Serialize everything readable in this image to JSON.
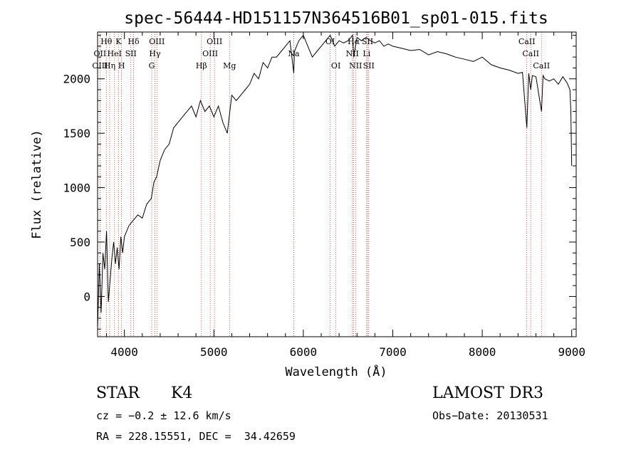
{
  "chart_data": {
    "type": "line",
    "title": "spec-56444-HD151157N364516B01_sp01-015.fits",
    "xlabel": "Wavelength (Å)",
    "ylabel": "Flux (relative)",
    "xlim": [
      3700,
      9050
    ],
    "ylim": [
      -370,
      2430
    ],
    "x_ticks": [
      4000,
      5000,
      6000,
      7000,
      8000,
      9000
    ],
    "y_ticks": [
      0,
      500,
      1000,
      1500,
      2000
    ],
    "grid": false,
    "series": [
      {
        "name": "flux",
        "x": [
          3700,
          3720,
          3740,
          3760,
          3780,
          3800,
          3820,
          3840,
          3860,
          3880,
          3900,
          3920,
          3940,
          3960,
          3980,
          4000,
          4050,
          4100,
          4150,
          4200,
          4250,
          4300,
          4330,
          4360,
          4400,
          4450,
          4500,
          4550,
          4600,
          4650,
          4700,
          4750,
          4800,
          4850,
          4900,
          4950,
          5000,
          5050,
          5100,
          5150,
          5200,
          5250,
          5300,
          5350,
          5400,
          5450,
          5500,
          5550,
          5600,
          5650,
          5700,
          5750,
          5800,
          5850,
          5893,
          5900,
          5950,
          6000,
          6050,
          6100,
          6150,
          6200,
          6250,
          6300,
          6350,
          6400,
          6450,
          6500,
          6550,
          6563,
          6600,
          6650,
          6700,
          6750,
          6800,
          6850,
          6900,
          6950,
          7000,
          7100,
          7200,
          7300,
          7400,
          7500,
          7600,
          7700,
          7800,
          7900,
          8000,
          8100,
          8200,
          8300,
          8400,
          8450,
          8498,
          8520,
          8542,
          8560,
          8600,
          8662,
          8680,
          8700,
          8750,
          8800,
          8850,
          8900,
          8950,
          8980,
          8990,
          9000
        ],
        "y": [
          -300,
          300,
          -150,
          400,
          250,
          600,
          -50,
          150,
          350,
          500,
          300,
          450,
          250,
          550,
          400,
          550,
          650,
          700,
          750,
          720,
          850,
          900,
          1050,
          1100,
          1250,
          1350,
          1400,
          1550,
          1600,
          1650,
          1700,
          1750,
          1650,
          1800,
          1700,
          1750,
          1650,
          1750,
          1600,
          1500,
          1850,
          1800,
          1850,
          1900,
          1950,
          2050,
          2000,
          2150,
          2100,
          2200,
          2200,
          2250,
          2300,
          2350,
          2050,
          2250,
          2350,
          2400,
          2300,
          2200,
          2250,
          2300,
          2350,
          2400,
          2300,
          2350,
          2330,
          2350,
          2400,
          2200,
          2380,
          2350,
          2380,
          2350,
          2330,
          2350,
          2300,
          2320,
          2300,
          2280,
          2260,
          2270,
          2220,
          2250,
          2230,
          2200,
          2180,
          2160,
          2200,
          2130,
          2100,
          2080,
          2050,
          2060,
          1550,
          2050,
          1900,
          2030,
          2020,
          1700,
          2030,
          2000,
          1980,
          2000,
          1950,
          2020,
          1960,
          1900,
          1700,
          1200
        ]
      }
    ],
    "line_markers": [
      {
        "name": "Hθ",
        "x": 3798,
        "label_row": 1
      },
      {
        "name": "OII",
        "x": 3727,
        "label_row": 2
      },
      {
        "name": "OIII",
        "x": 3727,
        "label_row": 3
      },
      {
        "name": "K",
        "x": 3934,
        "label_row": 1
      },
      {
        "name": "HeI",
        "x": 3889,
        "label_row": 2
      },
      {
        "name": "Hη",
        "x": 3835,
        "label_row": 3
      },
      {
        "name": "Hδ",
        "x": 4102,
        "label_row": 1
      },
      {
        "name": "SII",
        "x": 4072,
        "label_row": 2
      },
      {
        "name": "H",
        "x": 3968,
        "label_row": 3
      },
      {
        "name": "OIII",
        "x": 4363,
        "label_row": 1
      },
      {
        "name": "Hγ",
        "x": 4341,
        "label_row": 2
      },
      {
        "name": "G",
        "x": 4305,
        "label_row": 3
      },
      {
        "name": "OIII",
        "x": 5007,
        "label_row": 1
      },
      {
        "name": "OIII",
        "x": 4959,
        "label_row": 2
      },
      {
        "name": "Hβ",
        "x": 4861,
        "label_row": 3
      },
      {
        "name": "Mg",
        "x": 5175,
        "label_row": 3
      },
      {
        "name": "Na",
        "x": 5893,
        "label_row": 2
      },
      {
        "name": "OI",
        "x": 6300,
        "label_row": 1
      },
      {
        "name": "OI",
        "x": 6364,
        "label_row": 3
      },
      {
        "name": "Hα",
        "x": 6563,
        "label_row": 1
      },
      {
        "name": "NII",
        "x": 6548,
        "label_row": 2
      },
      {
        "name": "NII",
        "x": 6584,
        "label_row": 3
      },
      {
        "name": "SII",
        "x": 6717,
        "label_row": 1
      },
      {
        "name": "Li",
        "x": 6708,
        "label_row": 2
      },
      {
        "name": "SII",
        "x": 6731,
        "label_row": 3
      },
      {
        "name": "CaII",
        "x": 8498,
        "label_row": 1
      },
      {
        "name": "CaII",
        "x": 8542,
        "label_row": 2
      },
      {
        "name": "CaII",
        "x": 8662,
        "label_row": 3
      }
    ]
  },
  "info": {
    "object_class": "STAR",
    "subclass": "K4",
    "survey": "LAMOST DR3",
    "redshift": "cz = −0.2 ± 12.6 km/s",
    "obs_date": "Obs−Date: 20130531",
    "coords": "RA = 228.15551, DEC =  34.42659"
  }
}
